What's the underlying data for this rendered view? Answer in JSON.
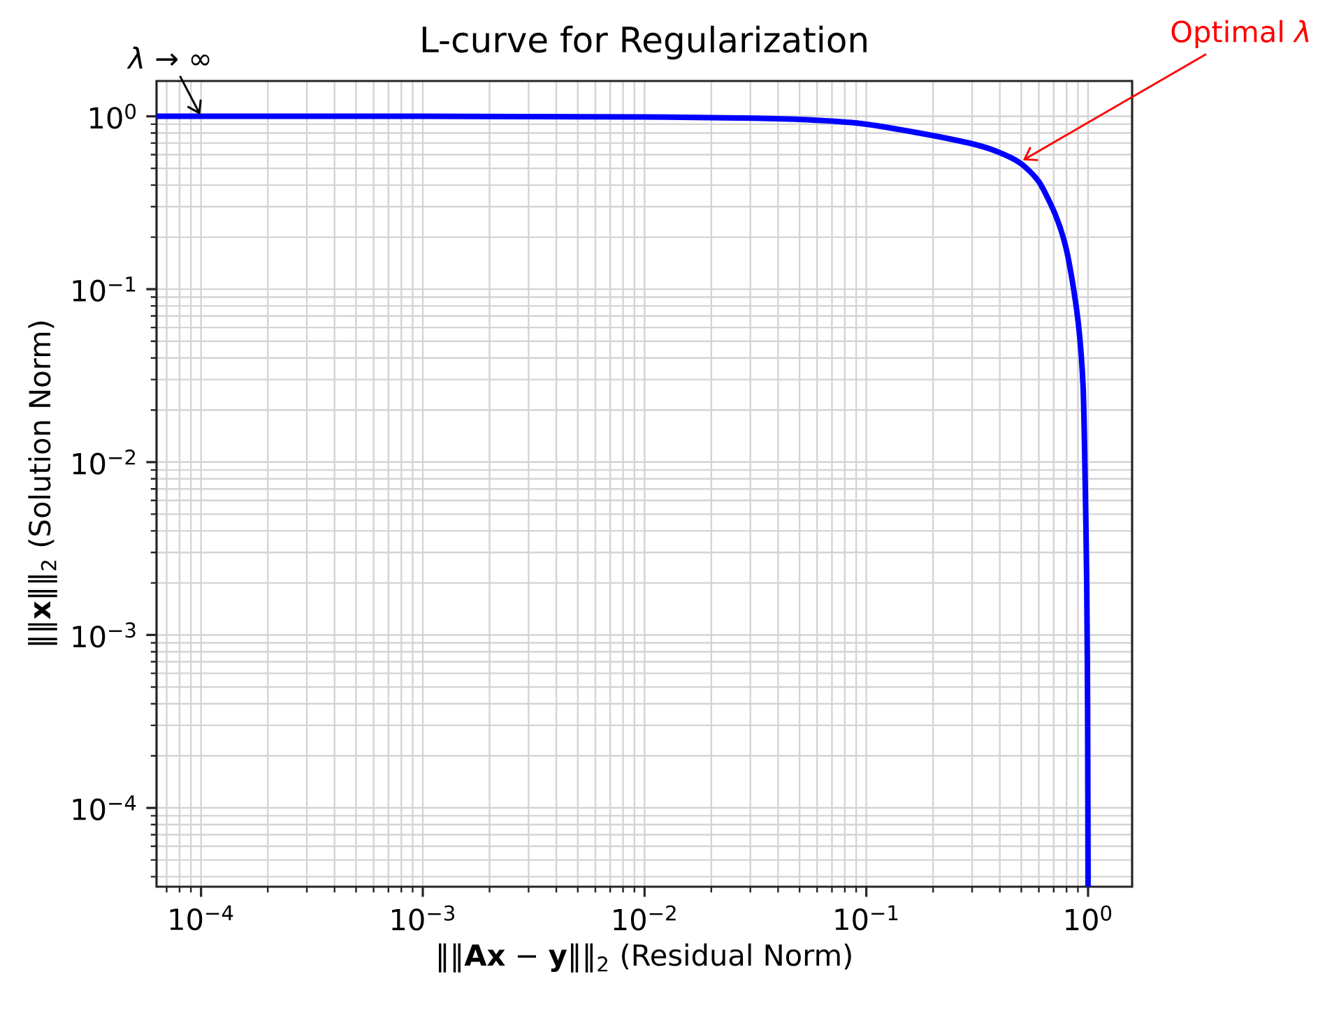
{
  "chart_data": {
    "type": "line",
    "title": "L-curve for Regularization",
    "xlabel": "‖‖**Ax** − **y**‖‖$_{2}$ (Residual Norm)",
    "ylabel": "‖‖**x**‖‖$_{2}$ (Solution Norm)",
    "x": [
      6.3e-05,
      0.001,
      0.01,
      0.031,
      0.054,
      0.095,
      0.166,
      0.29,
      0.383,
      0.494,
      0.6,
      0.71,
      0.793,
      0.862,
      0.913,
      0.95,
      0.97,
      0.986,
      0.995,
      1.0
    ],
    "values": [
      1.0,
      1.0,
      0.99,
      0.975,
      0.954,
      0.907,
      0.808,
      0.701,
      0.63,
      0.537,
      0.418,
      0.272,
      0.176,
      0.099,
      0.056,
      0.027,
      0.008,
      0.002,
      0.0004,
      3.5e-05
    ],
    "color": "#0000ff",
    "line_style": "solid",
    "log": "xy",
    "xlim": [
      6.3e-05,
      1.58
    ],
    "ylim": [
      3.5e-05,
      1.6
    ],
    "xticks": [
      {
        "value": 0.0001,
        "label": "10$^{−4}$"
      },
      {
        "value": 0.001,
        "label": "10$^{−3}$"
      },
      {
        "value": 0.01,
        "label": "10$^{−2}$"
      },
      {
        "value": 0.1,
        "label": "10$^{−1}$"
      },
      {
        "value": 1,
        "label": "10$^{0}$"
      }
    ],
    "yticks": [
      {
        "value": 0.0001,
        "label": "10$^{−4}$"
      },
      {
        "value": 0.001,
        "label": "10$^{−3}$"
      },
      {
        "value": 0.01,
        "label": "10$^{−2}$"
      },
      {
        "value": 0.1,
        "label": "10$^{−1}$"
      },
      {
        "value": 1,
        "label": "10$^{0}$"
      }
    ],
    "grid": true,
    "annotations": [
      {
        "text": "*λ* → ∞",
        "x": 0.0001,
        "y": 1
      },
      {
        "text": "Optimal *λ*",
        "x": 0.5,
        "y": 0.55
      }
    ]
  }
}
